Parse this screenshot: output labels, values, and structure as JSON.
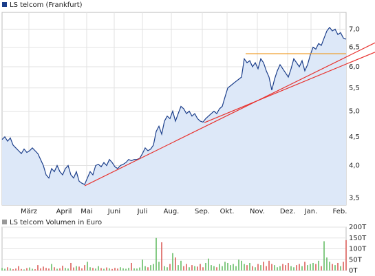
{
  "chart_data": [
    {
      "type": "line",
      "legend": "LS telcom (Frankfurt)",
      "legend_color": "#1a3d8a",
      "color": "#1a3d8a",
      "fill": "#dde8f8",
      "log_scale": true,
      "grid": true,
      "xlim": [
        0,
        125
      ],
      "ylim": [
        3.4,
        7.5
      ],
      "xticks": [
        {
          "value": 9.75,
          "label": "März"
        },
        {
          "value": 22.5,
          "label": "April"
        },
        {
          "value": 30.75,
          "label": "Mai"
        },
        {
          "value": 40.75,
          "label": "Juni"
        },
        {
          "value": 51,
          "label": "Juli"
        },
        {
          "value": 61.5,
          "label": "Aug."
        },
        {
          "value": 72.75,
          "label": "Sep."
        },
        {
          "value": 81.75,
          "label": "Okt."
        },
        {
          "value": 92.75,
          "label": "Nov."
        },
        {
          "value": 103.75,
          "label": "Dez."
        },
        {
          "value": 112.25,
          "label": "Jan."
        },
        {
          "value": 122.75,
          "label": "Feb."
        }
      ],
      "yticks": [
        {
          "value": 3.5,
          "label": "3,5"
        },
        {
          "value": 4,
          "label": "4,0"
        },
        {
          "value": 4.5,
          "label": "4,5"
        },
        {
          "value": 5,
          "label": "5,0"
        },
        {
          "value": 5.5,
          "label": "5,5"
        },
        {
          "value": 6,
          "label": "6,0"
        },
        {
          "value": 6.5,
          "label": "6,5"
        },
        {
          "value": 7,
          "label": "7,0"
        }
      ],
      "values": [
        4.45,
        4.5,
        4.42,
        4.48,
        4.35,
        4.3,
        4.25,
        4.2,
        4.28,
        4.22,
        4.25,
        4.3,
        4.25,
        4.2,
        4.1,
        4.0,
        3.85,
        3.8,
        3.95,
        3.9,
        4.0,
        3.9,
        3.85,
        3.95,
        4.0,
        3.85,
        3.8,
        3.9,
        3.75,
        3.72,
        3.7,
        3.8,
        3.9,
        3.85,
        4.0,
        4.02,
        3.98,
        4.05,
        4.0,
        4.1,
        4.05,
        3.98,
        3.95,
        4.0,
        4.02,
        4.05,
        4.1,
        4.08,
        4.1,
        4.1,
        4.12,
        4.2,
        4.3,
        4.25,
        4.28,
        4.35,
        4.6,
        4.7,
        4.55,
        4.8,
        4.9,
        4.85,
        5.0,
        4.8,
        4.95,
        5.1,
        5.05,
        4.95,
        5.0,
        4.9,
        4.95,
        4.85,
        4.8,
        4.78,
        4.85,
        4.9,
        4.95,
        5.0,
        4.95,
        5.05,
        5.1,
        5.3,
        5.5,
        5.55,
        5.6,
        5.65,
        5.7,
        5.75,
        6.2,
        6.1,
        6.15,
        6.0,
        6.1,
        5.95,
        6.2,
        6.1,
        5.9,
        5.75,
        5.45,
        5.7,
        5.9,
        6.05,
        5.95,
        5.85,
        5.75,
        5.95,
        6.2,
        6.1,
        6.0,
        6.15,
        5.9,
        6.05,
        6.3,
        6.5,
        6.45,
        6.6,
        6.55,
        6.75,
        6.95,
        7.05,
        6.95,
        7.0,
        6.85,
        6.9,
        6.75,
        6.72
      ],
      "reference_lines": [
        {
          "color": "#e8332f",
          "x": [
            30,
            135.5
          ],
          "y": [
            3.68,
            6.62
          ]
        },
        {
          "color": "#e8332f",
          "x": [
            73.5,
            135.5
          ],
          "y": [
            4.77,
            6.37
          ]
        },
        {
          "color": "#f0a030",
          "x": [
            88.5,
            125
          ],
          "y": [
            6.33,
            6.33
          ]
        }
      ]
    },
    {
      "type": "bar",
      "legend": "LS telcom Volumen in Euro",
      "legend_color": "#999999",
      "up_color": "#5cb85c",
      "down_color": "#d9534f",
      "grid": true,
      "xlim": [
        0,
        125
      ],
      "ylim": [
        0,
        200
      ],
      "yticks": [
        {
          "value": 0,
          "label": "0T"
        },
        {
          "value": 50,
          "label": "50T"
        },
        {
          "value": 100,
          "label": "100T"
        },
        {
          "value": 150,
          "label": "150T"
        },
        {
          "value": 200,
          "label": "200T"
        }
      ],
      "values": [
        12,
        8,
        15,
        10,
        6,
        9,
        20,
        7,
        5,
        11,
        14,
        8,
        6,
        25,
        10,
        18,
        12,
        9,
        30,
        15,
        8,
        10,
        22,
        12,
        9,
        35,
        14,
        20,
        18,
        10,
        25,
        40,
        15,
        12,
        9,
        20,
        11,
        8,
        14,
        10,
        7,
        12,
        9,
        15,
        10,
        8,
        12,
        35,
        10,
        9,
        14,
        50,
        20,
        15,
        25,
        30,
        150,
        40,
        130,
        20,
        15,
        30,
        80,
        60,
        25,
        45,
        20,
        30,
        15,
        25,
        20,
        18,
        30,
        15,
        35,
        55,
        25,
        20,
        15,
        30,
        20,
        40,
        35,
        25,
        30,
        20,
        50,
        45,
        30,
        25,
        35,
        20,
        15,
        30,
        25,
        40,
        20,
        45,
        30,
        25,
        15,
        20,
        30,
        25,
        35,
        20,
        15,
        25,
        30,
        20,
        40,
        25,
        30,
        35,
        30,
        45,
        20,
        135,
        60,
        40,
        30,
        25,
        35,
        20,
        40,
        140
      ]
    }
  ]
}
